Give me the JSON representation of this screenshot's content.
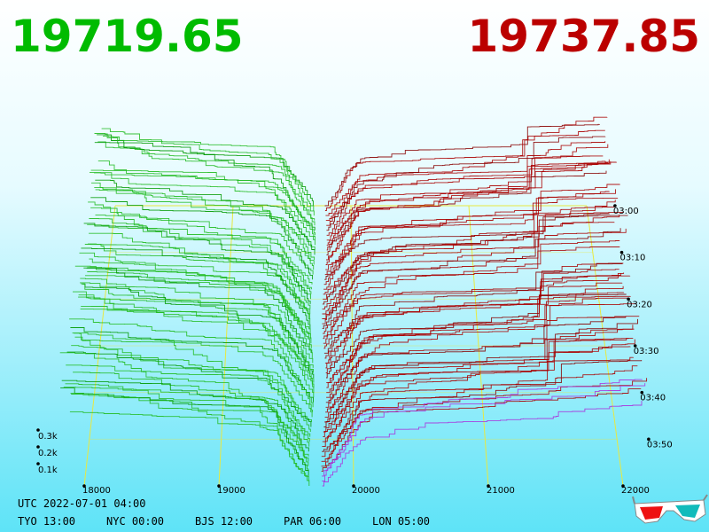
{
  "quotes": {
    "bid": "19719.65",
    "ask": "19737.85"
  },
  "price_ticks": [
    18000,
    19000,
    20000,
    21000,
    22000
  ],
  "time_ticks": [
    "03:00",
    "03:10",
    "03:20",
    "03:30",
    "03:40",
    "03:50"
  ],
  "volume_ticks": [
    "0.1k",
    "0.2k",
    "0.3k"
  ],
  "clock": {
    "utc": "UTC 2022-07-01 04:00",
    "cities": [
      "TYO 13:00",
      "NYC 00:00",
      "BJS 12:00",
      "PAR 06:00",
      "LON 05:00"
    ]
  }
}
